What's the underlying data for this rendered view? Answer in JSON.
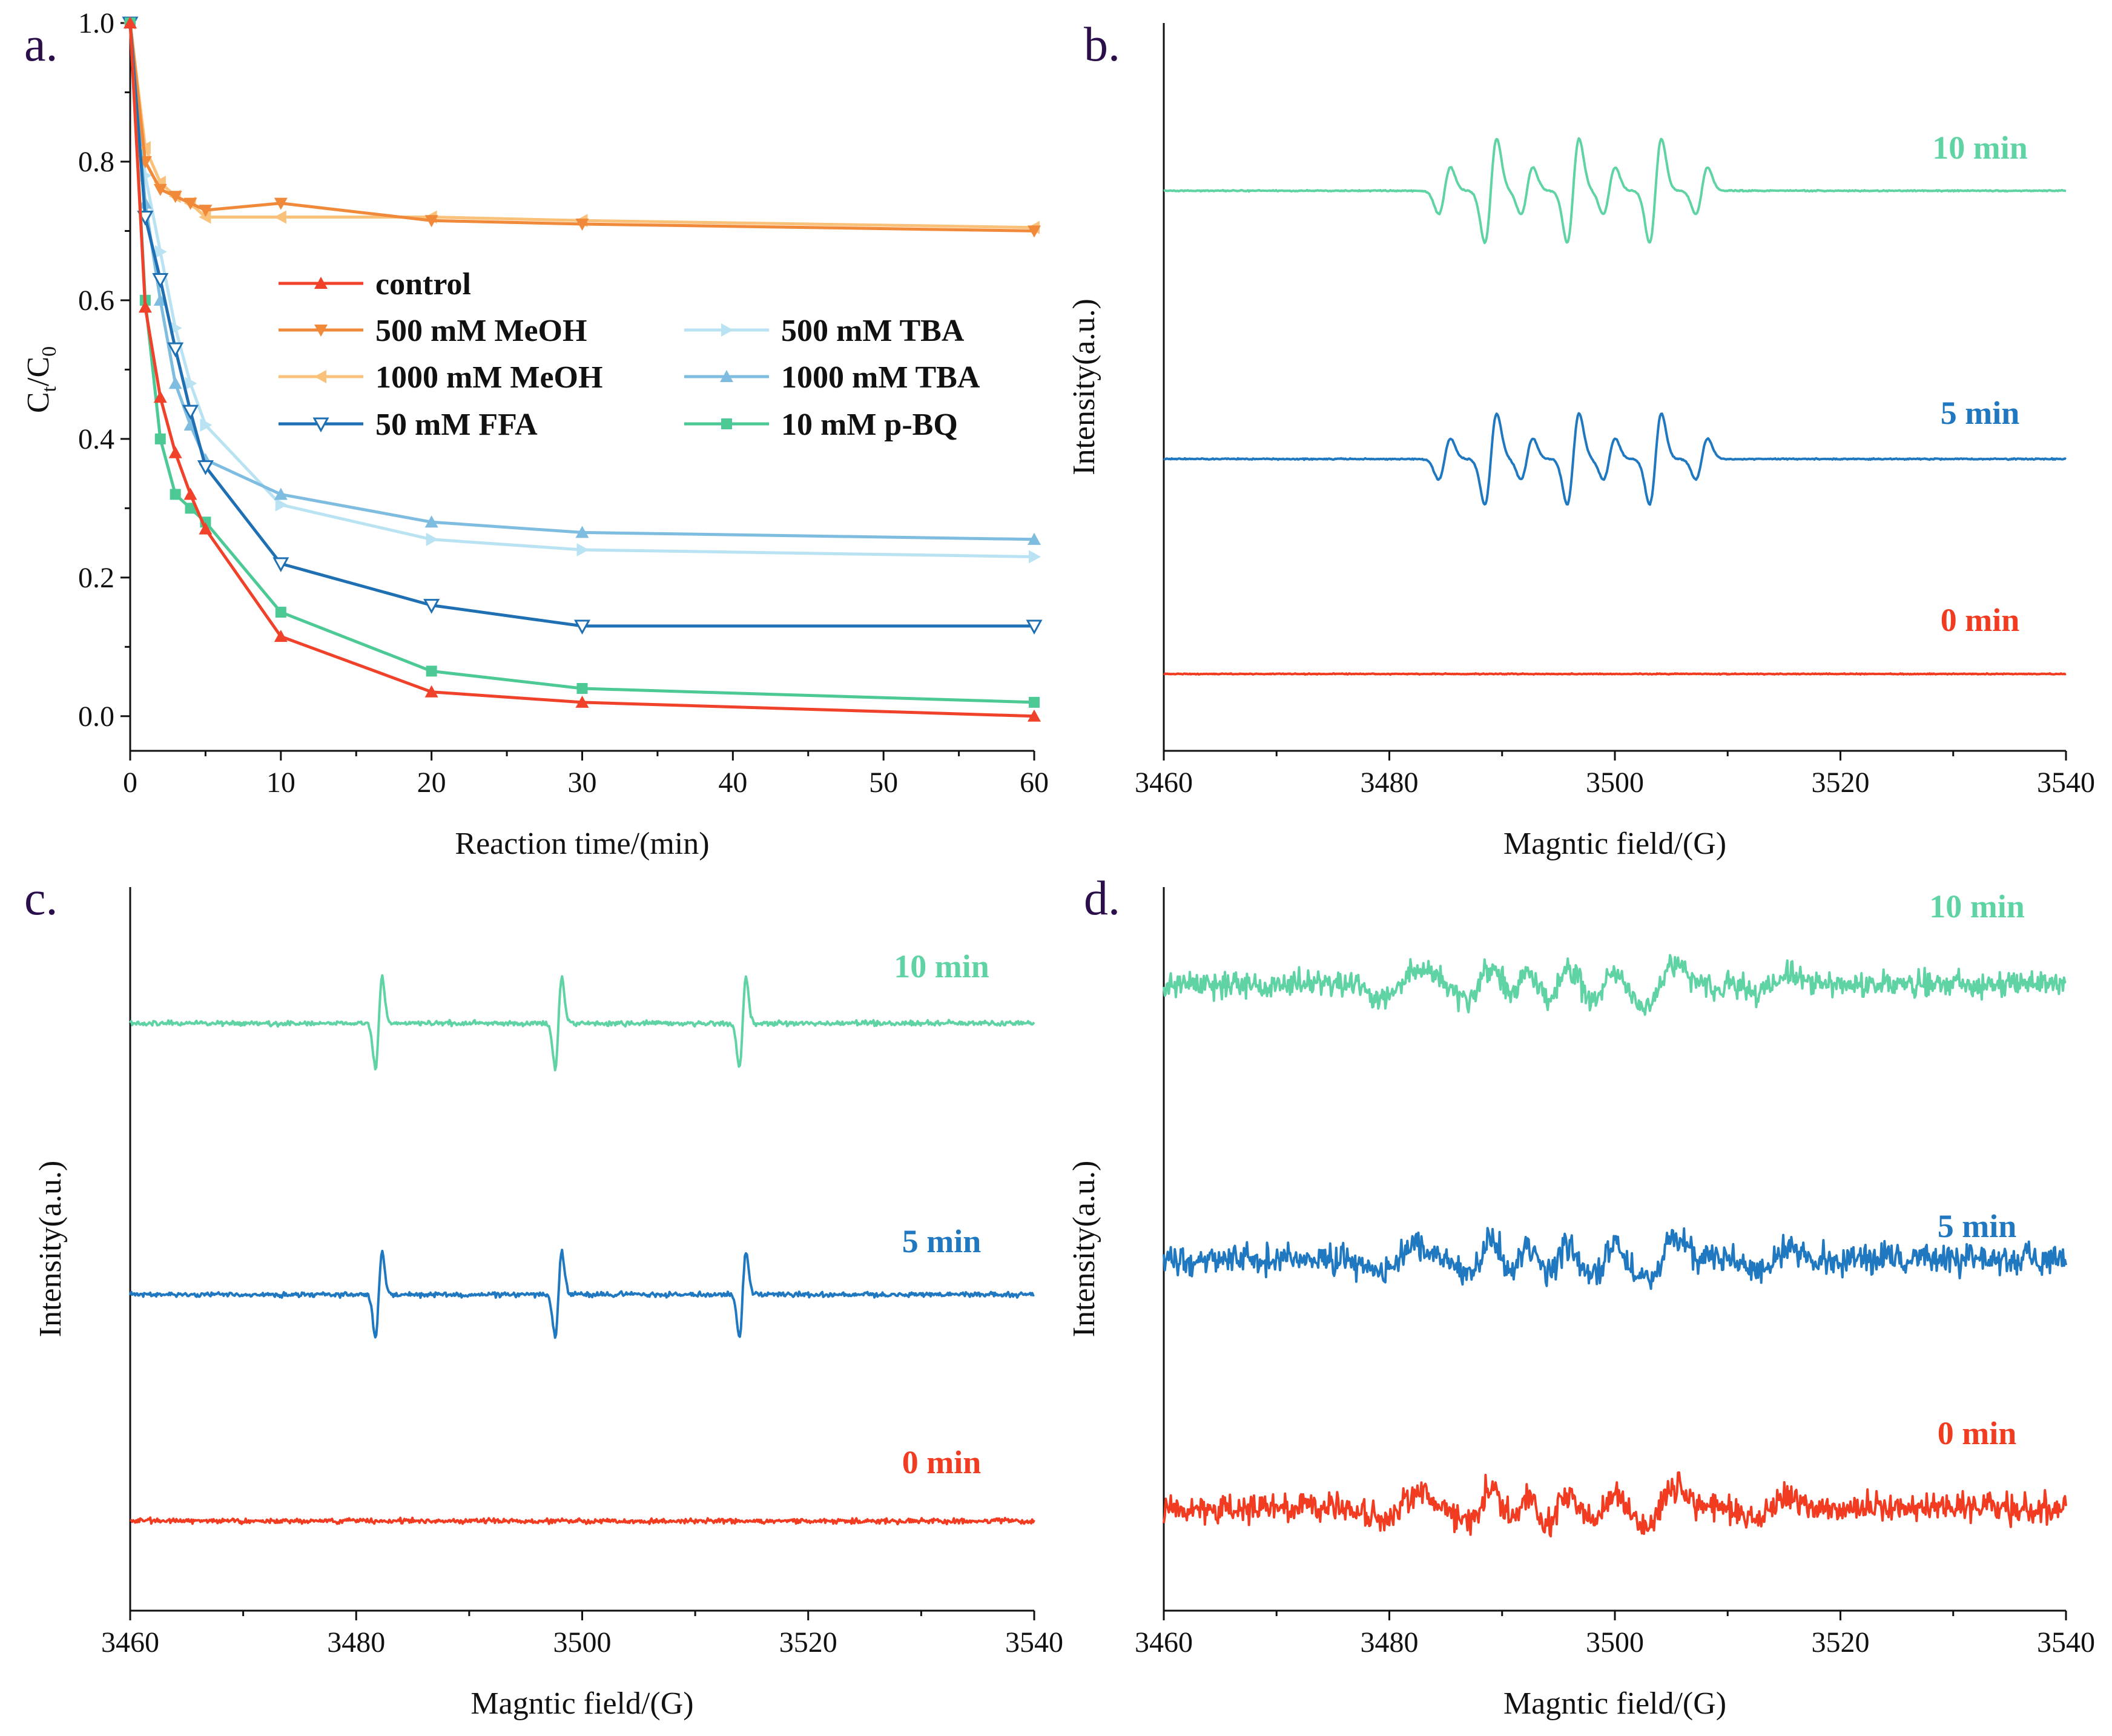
{
  "colors": {
    "control": "#f0422a",
    "meoh500": "#f08a3a",
    "meoh1000": "#fac17a",
    "ffa50": "#1f6fb3",
    "tba500": "#b9e3f2",
    "tba1000": "#7fbde0",
    "pbq10": "#4cc994",
    "t10": "#5fd3a3",
    "t5": "#1f78c0",
    "t0": "#f23c22",
    "axis": "#111111"
  },
  "chart_data": [
    {
      "panel": "a.",
      "type": "line",
      "xlabel": "Reaction time/(min)",
      "ylabel_main": "C",
      "ylabel_sub1": "t",
      "ylabel_slash": "/C",
      "ylabel_sub2": "0",
      "xlim": [
        0,
        60
      ],
      "ylim": [
        -0.05,
        1.0
      ],
      "xticks": [
        0,
        10,
        20,
        30,
        40,
        50,
        60
      ],
      "yticks": [
        0.0,
        0.2,
        0.4,
        0.6,
        0.8,
        1.0
      ],
      "ytick_labels": [
        "0.0",
        "0.2",
        "0.4",
        "0.6",
        "0.8",
        "1.0"
      ],
      "legend_position": "center",
      "series": [
        {
          "key": "control",
          "name": "control",
          "marker": "triangle-up",
          "x": [
            0,
            1,
            2,
            3,
            4,
            5,
            10,
            20,
            30,
            60
          ],
          "y": [
            1.0,
            0.59,
            0.46,
            0.38,
            0.32,
            0.27,
            0.115,
            0.035,
            0.02,
            0.0
          ]
        },
        {
          "key": "meoh500",
          "name": "500 mM MeOH",
          "marker": "triangle-down",
          "x": [
            0,
            1,
            2,
            3,
            4,
            5,
            10,
            20,
            30,
            60
          ],
          "y": [
            1.0,
            0.8,
            0.76,
            0.75,
            0.74,
            0.73,
            0.74,
            0.715,
            0.71,
            0.7
          ]
        },
        {
          "key": "meoh1000",
          "name": "1000 mM MeOH",
          "marker": "triangle-left",
          "x": [
            0,
            1,
            2,
            3,
            4,
            5,
            10,
            20,
            30,
            60
          ],
          "y": [
            1.0,
            0.82,
            0.77,
            0.75,
            0.74,
            0.72,
            0.72,
            0.72,
            0.715,
            0.705
          ]
        },
        {
          "key": "ffa50",
          "name": "50 mM FFA",
          "marker": "triangle-down-open",
          "x": [
            0,
            1,
            2,
            3,
            4,
            5,
            10,
            20,
            30,
            60
          ],
          "y": [
            1.0,
            0.72,
            0.63,
            0.53,
            0.44,
            0.36,
            0.22,
            0.16,
            0.13,
            0.13
          ]
        },
        {
          "key": "tba500",
          "name": "500 mM TBA",
          "marker": "triangle-right",
          "x": [
            0,
            1,
            2,
            3,
            4,
            5,
            10,
            20,
            30,
            60
          ],
          "y": [
            1.0,
            0.78,
            0.67,
            0.56,
            0.48,
            0.42,
            0.305,
            0.255,
            0.24,
            0.23
          ]
        },
        {
          "key": "tba1000",
          "name": "1000 mM TBA",
          "marker": "triangle-up",
          "x": [
            0,
            1,
            2,
            3,
            4,
            5,
            10,
            20,
            30,
            60
          ],
          "y": [
            1.0,
            0.74,
            0.6,
            0.48,
            0.42,
            0.37,
            0.32,
            0.28,
            0.265,
            0.255
          ]
        },
        {
          "key": "pbq10",
          "name": "10 mM p-BQ",
          "marker": "square",
          "x": [
            0,
            1,
            2,
            3,
            4,
            5,
            10,
            20,
            30,
            60
          ],
          "y": [
            1.0,
            0.6,
            0.4,
            0.32,
            0.3,
            0.28,
            0.15,
            0.065,
            0.04,
            0.02
          ]
        }
      ]
    },
    {
      "panel": "b.",
      "type": "line",
      "pattern": "sextet",
      "xlabel": "Magntic field/(G)",
      "ylabel": "Intensity(a.u.)",
      "xlim": [
        3460,
        3540
      ],
      "xticks": [
        3460,
        3480,
        3500,
        3520,
        3540
      ],
      "series": [
        {
          "key": "t10",
          "name": "10 min"
        },
        {
          "key": "t5",
          "name": "5 min"
        },
        {
          "key": "t0",
          "name": "0 min"
        }
      ]
    },
    {
      "panel": "c.",
      "type": "line",
      "pattern": "triplet",
      "xlabel": "Magntic field/(G)",
      "ylabel": "Intensity(a.u.)",
      "xlim": [
        3460,
        3540
      ],
      "xticks": [
        3460,
        3480,
        3500,
        3520,
        3540
      ],
      "series": [
        {
          "key": "t10",
          "name": "10 min"
        },
        {
          "key": "t5",
          "name": "5 min"
        },
        {
          "key": "t0",
          "name": "0 min"
        }
      ]
    },
    {
      "panel": "d.",
      "type": "line",
      "pattern": "noisy",
      "xlabel": "Magntic field/(G)",
      "ylabel": "Intensity(a.u.)",
      "xlim": [
        3460,
        3540
      ],
      "xticks": [
        3460,
        3480,
        3500,
        3520,
        3540
      ],
      "series": [
        {
          "key": "t10",
          "name": "10 min"
        },
        {
          "key": "t5",
          "name": "5 min"
        },
        {
          "key": "t0",
          "name": "0 min"
        }
      ]
    }
  ]
}
